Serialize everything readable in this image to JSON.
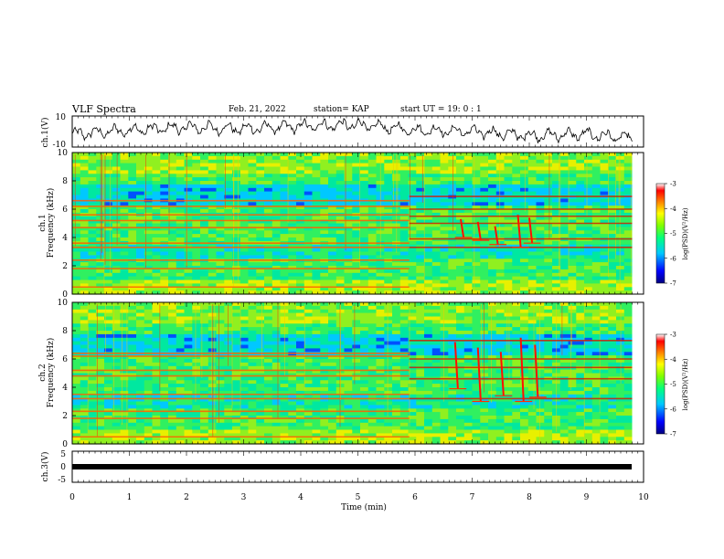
{
  "header": {
    "title": "VLF Spectra",
    "date": "Feb. 21, 2022",
    "station": "station= KAP",
    "start": "start  UT =   19: 0  : 1"
  },
  "colors": {
    "colormap": [
      "#000080",
      "#0000ff",
      "#00c8ff",
      "#00ff80",
      "#80ff00",
      "#ffff00",
      "#ff8000",
      "#ff0000",
      "#ffffff"
    ],
    "waveform": "#000000",
    "background": "#ffffff"
  },
  "chart_data": [
    {
      "type": "line",
      "name": "ch1-waveform",
      "ylabel": "ch.1(V)",
      "ylim": [
        -10,
        10
      ],
      "yticks": [
        "10",
        "-10"
      ],
      "x": [
        0,
        1,
        2,
        3,
        4,
        5,
        6,
        7,
        8,
        9,
        9.8
      ],
      "values": [
        -2,
        1,
        3,
        2,
        4,
        5,
        1,
        0,
        -3,
        -2,
        -5
      ]
    },
    {
      "type": "heatmap",
      "name": "ch1-spectrogram",
      "ylabel": "ch.1\nFrequency (kHz)",
      "ylabel_line1": "ch.1",
      "ylabel_line2": "Frequency (kHz)",
      "ylim": [
        0,
        10
      ],
      "yticks": [
        "0",
        "2",
        "4",
        "6",
        "8",
        "10"
      ],
      "xlim": [
        0,
        10
      ],
      "colorbar": {
        "label": "log(PSD)(V²/Hz)",
        "range": [
          -7,
          -3
        ],
        "ticks": [
          "-3",
          "-4",
          "-5",
          "-6",
          "-7"
        ]
      },
      "bands_kHz": [
        0.5,
        1.8,
        2.4,
        3.3,
        3.6,
        4.7,
        5.2,
        5.6,
        6.2,
        6.6
      ],
      "bands_after_6min_kHz": [
        3.3,
        3.9,
        5.0,
        5.5,
        6.0,
        6.9
      ],
      "emission_bursts": [
        {
          "t": 6.8,
          "f": [
            4.0,
            5.3
          ]
        },
        {
          "t": 7.1,
          "f": [
            3.8,
            5.1
          ]
        },
        {
          "t": 7.4,
          "f": [
            3.5,
            4.8
          ]
        },
        {
          "t": 7.8,
          "f": [
            3.3,
            5.6
          ]
        },
        {
          "t": 8.0,
          "f": [
            3.6,
            5.4
          ]
        }
      ]
    },
    {
      "type": "heatmap",
      "name": "ch2-spectrogram",
      "ylabel": "ch.2\nFrequency (kHz)",
      "ylabel_line1": "ch.2",
      "ylabel_line2": "Frequency (kHz)",
      "ylim": [
        0,
        10
      ],
      "yticks": [
        "0",
        "2",
        "4",
        "6",
        "8",
        "10"
      ],
      "xlim": [
        0,
        10
      ],
      "colorbar": {
        "label": "log(PSD)(V²/Hz)",
        "range": [
          -7,
          -3
        ],
        "ticks": [
          "-3",
          "-4",
          "-5",
          "-6",
          "-7"
        ]
      },
      "bands_kHz": [
        0.5,
        1.8,
        2.3,
        3.2,
        3.5,
        4.8,
        5.2,
        6.2,
        6.4
      ],
      "bands_after_6min_kHz": [
        3.2,
        4.6,
        5.4,
        6.0,
        7.3
      ],
      "emission_bursts": [
        {
          "t": 6.7,
          "f": [
            3.9,
            7.2
          ]
        },
        {
          "t": 7.1,
          "f": [
            3.0,
            6.8
          ]
        },
        {
          "t": 7.5,
          "f": [
            3.4,
            6.5
          ]
        },
        {
          "t": 7.85,
          "f": [
            3.0,
            7.5
          ]
        },
        {
          "t": 8.1,
          "f": [
            3.3,
            7.0
          ]
        }
      ]
    },
    {
      "type": "line",
      "name": "ch3-waveform",
      "ylabel": "ch.3(V)",
      "ylim": [
        -5,
        5
      ],
      "yticks": [
        "5",
        "0",
        "-5"
      ],
      "x": [
        0,
        9.8
      ],
      "values": [
        -1.5,
        -1.5
      ]
    }
  ],
  "xaxis": {
    "label": "Time (min)",
    "ticks": [
      "0",
      "1",
      "2",
      "3",
      "4",
      "5",
      "6",
      "7",
      "8",
      "9",
      "10"
    ],
    "xlim": [
      0,
      10
    ]
  }
}
